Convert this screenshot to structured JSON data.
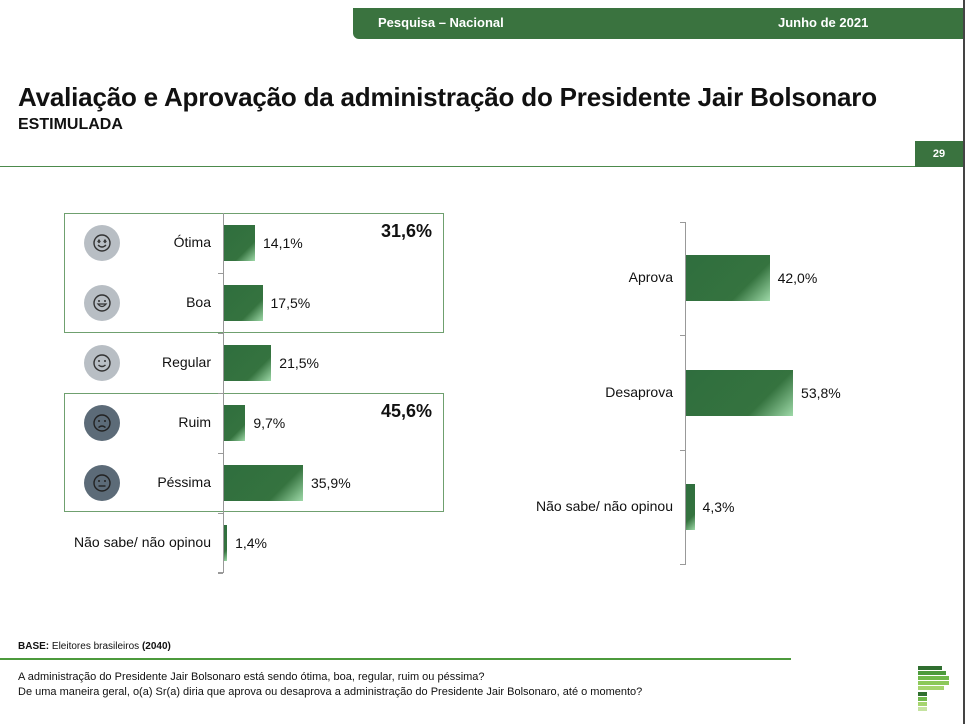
{
  "header": {
    "survey": "Pesquisa – Nacional",
    "date": "Junho de 2021"
  },
  "title": "Avaliação e Aprovação da administração do Presidente Jair Bolsonaro",
  "subtitle": "ESTIMULADA",
  "page_number": "29",
  "chart_data": [
    {
      "type": "bar",
      "orientation": "horizontal",
      "categories": [
        "Ótima",
        "Boa",
        "Regular",
        "Ruim",
        "Péssima",
        "Não sabe/ não opinou"
      ],
      "values": [
        14.1,
        17.5,
        21.5,
        9.7,
        35.9,
        1.4
      ],
      "value_labels": [
        "14,1%",
        "17,5%",
        "21,5%",
        "9,7%",
        "35,9%",
        "1,4%"
      ],
      "icons": [
        "heart-eyes-face",
        "smiling-face",
        "slight-smile-face",
        "frowning-face",
        "neutral-face",
        ""
      ],
      "groups": [
        {
          "members": [
            "Ótima",
            "Boa"
          ],
          "total": "31,6%"
        },
        {
          "members": [
            "Ruim",
            "Péssima"
          ],
          "total": "45,6%"
        }
      ]
    },
    {
      "type": "bar",
      "orientation": "horizontal",
      "categories": [
        "Aprova",
        "Desaprova",
        "Não sabe/ não opinou"
      ],
      "values": [
        42.0,
        53.8,
        4.3
      ],
      "value_labels": [
        "42,0%",
        "53,8%",
        "4,3%"
      ]
    }
  ],
  "colors": {
    "bar": "#35733f",
    "header": "#3a733f",
    "positive_icon": "#b8bec4",
    "negative_icon": "#5c6b78"
  },
  "footer": {
    "base_label": "BASE:",
    "base_text": "Eleitores brasileiros",
    "base_n": "(2040)",
    "q1": "A administração do Presidente Jair Bolsonaro está sendo ótima, boa, regular, ruim ou péssima?",
    "q2": "De uma maneira geral, o(a) Sr(a) diria que aprova ou desaprova a administração do Presidente Jair Bolsonaro, até o momento?"
  }
}
